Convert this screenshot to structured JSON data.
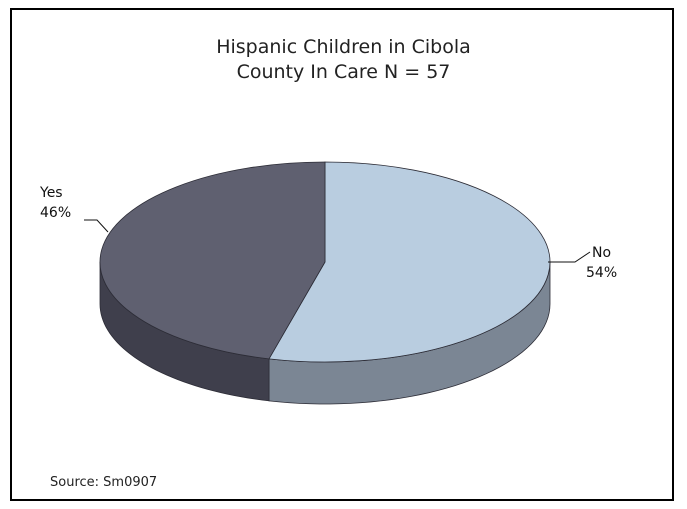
{
  "chart_data": {
    "type": "pie",
    "title_lines": [
      "Hispanic Children in Cibola",
      "County In Care N = 57"
    ],
    "slices": [
      {
        "label": "No",
        "percent_label": "54%",
        "value": 54,
        "color": "#b9cde0",
        "side_color": "#7b8694"
      },
      {
        "label": "Yes",
        "percent_label": "46%",
        "value": 46,
        "color": "#5f6070",
        "side_color": "#3f3f4c"
      }
    ],
    "three_d": true,
    "source": "Source: Sm0907"
  }
}
